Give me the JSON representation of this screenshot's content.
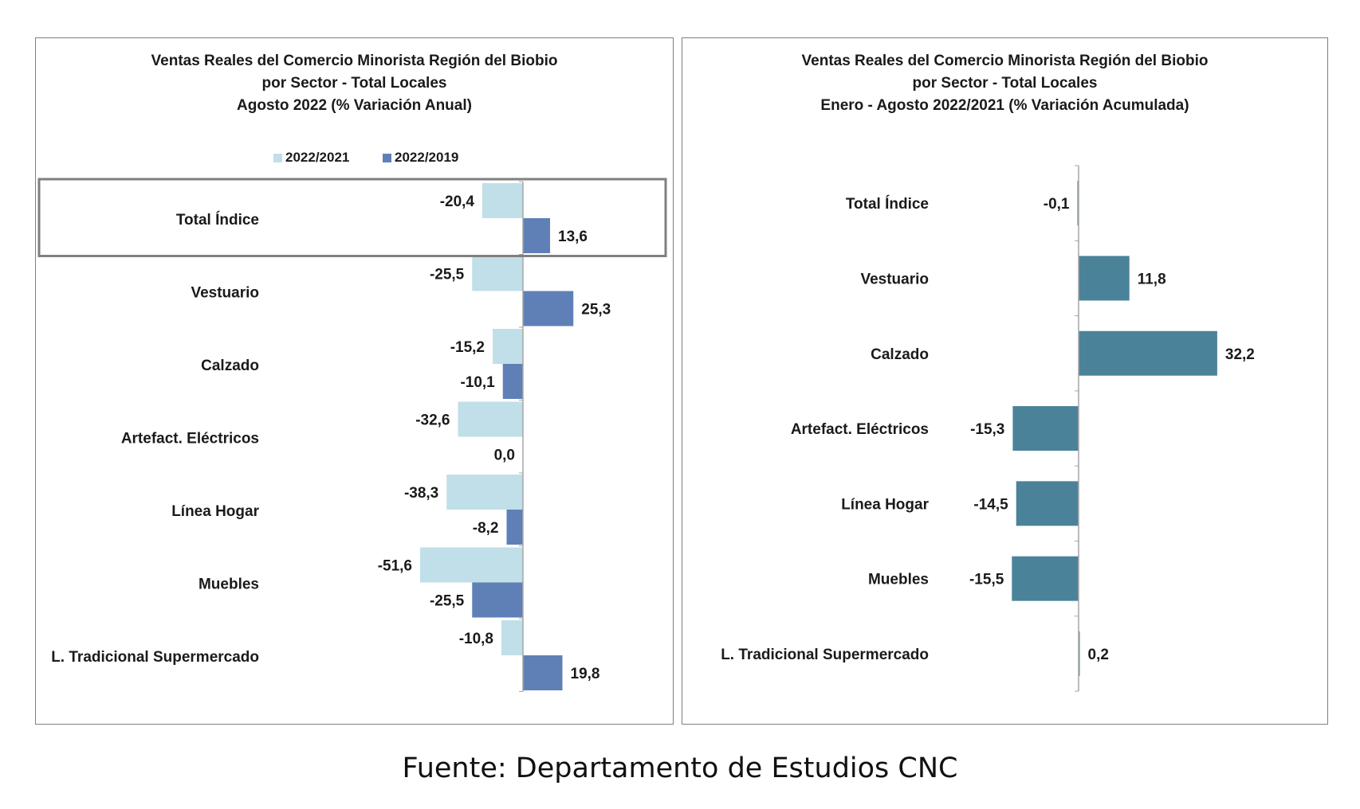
{
  "chart_data": [
    {
      "type": "bar",
      "orientation": "horizontal",
      "title": [
        "Ventas Reales del Comercio Minorista  Región del Biobio",
        "por Sector - Total Locales",
        "Agosto 2022  (% Variación Anual)"
      ],
      "categories": [
        "Total Índice",
        "Vestuario",
        "Calzado",
        "Artefact. Eléctricos",
        "Línea Hogar",
        "Muebles",
        "L. Tradicional Supermercado"
      ],
      "series": [
        {
          "name": "2022/2021",
          "color": "#c0dfe8",
          "values": [
            -20.4,
            -25.5,
            -15.2,
            -32.6,
            -38.3,
            -51.6,
            -10.8
          ],
          "labels": [
            "-20,4",
            "-25,5",
            "-15,2",
            "-32,6",
            "-38,3",
            "-51,6",
            "-10,8"
          ]
        },
        {
          "name": "2022/2019",
          "color": "#5f80b7",
          "values": [
            13.6,
            25.3,
            -10.1,
            0.0,
            -8.2,
            -25.5,
            19.8
          ],
          "labels": [
            "13,6",
            "25,3",
            "-10,1",
            "0,0",
            "-8,2",
            "-25,5",
            "19,8"
          ]
        }
      ],
      "legend": "top",
      "highlighted_category": "Total Índice"
    },
    {
      "type": "bar",
      "orientation": "horizontal",
      "title": [
        "Ventas Reales del Comercio Minorista Región del Biobio",
        "por Sector - Total Locales",
        "Enero - Agosto 2022/2021  (% Variación Acumulada)"
      ],
      "categories": [
        "Total Índice",
        "Vestuario",
        "Calzado",
        "Artefact. Eléctricos",
        "Línea Hogar",
        "Muebles",
        "L. Tradicional Supermercado"
      ],
      "series": [
        {
          "color": "#4a8299",
          "values": [
            -0.1,
            11.8,
            32.2,
            -15.3,
            -14.5,
            -15.5,
            0.2
          ],
          "labels": [
            "-0,1",
            "11,8",
            "32,2",
            "-15,3",
            "-14,5",
            "-15,5",
            "0,2"
          ]
        }
      ]
    }
  ],
  "source": "Fuente: Departamento de Estudios CNC"
}
